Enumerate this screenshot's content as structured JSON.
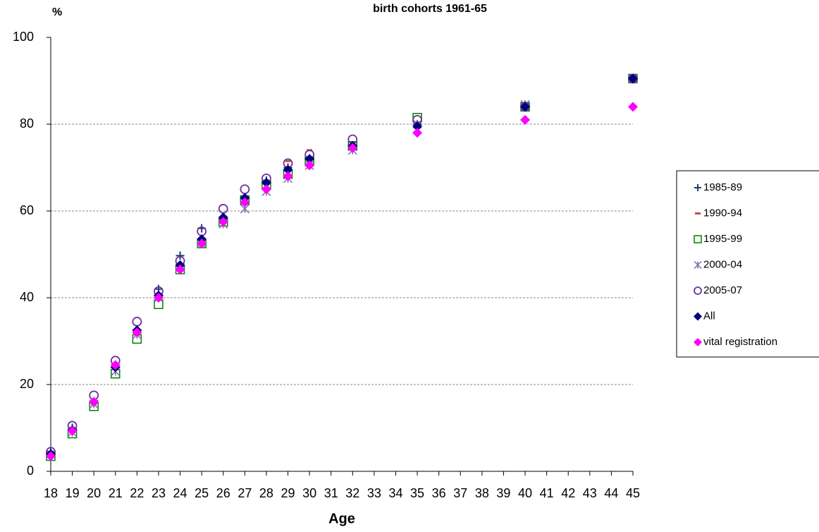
{
  "chart_data": {
    "type": "scatter",
    "title": "birth cohorts 1961-65",
    "y_label": "%",
    "x_label": "Age",
    "x": [
      18,
      19,
      20,
      21,
      22,
      23,
      24,
      25,
      26,
      27,
      28,
      29,
      30,
      32,
      35,
      40,
      45
    ],
    "xlim": [
      18,
      45
    ],
    "xticks": [
      18,
      19,
      20,
      21,
      22,
      23,
      24,
      25,
      26,
      27,
      28,
      29,
      30,
      31,
      32,
      33,
      34,
      35,
      36,
      37,
      38,
      39,
      40,
      41,
      42,
      43,
      44,
      45
    ],
    "ylim": [
      0,
      100
    ],
    "yticks": [
      0,
      20,
      40,
      60,
      80,
      100
    ],
    "grid": true,
    "legend": "right",
    "series": [
      {
        "name": "1985-89",
        "color": "#1f3b73",
        "marker": "plus",
        "values": [
          4.5,
          10,
          16,
          24.5,
          32.5,
          42,
          49.7,
          56,
          58,
          63,
          67,
          70,
          72,
          75,
          80,
          84.5,
          90.5
        ]
      },
      {
        "name": "1990-94",
        "color": "#c0504d",
        "marker": "dash",
        "values": [
          4,
          9.5,
          15.5,
          23.5,
          31.5,
          40.5,
          47,
          53.5,
          58,
          62.5,
          67,
          71.5,
          74,
          75,
          80,
          84,
          90.5
        ]
      },
      {
        "name": "1995-99",
        "color": "#008000",
        "marker": "square",
        "values": [
          3.5,
          8.7,
          15,
          22.5,
          30.5,
          38.5,
          46.5,
          52.5,
          57.5,
          62.5,
          66,
          68.5,
          71.5,
          75,
          81.5,
          84,
          90.5
        ]
      },
      {
        "name": "2000-04",
        "color": "#7f6fa8",
        "marker": "asterisk",
        "values": [
          4,
          9,
          15.5,
          23,
          31.5,
          40,
          47,
          52.5,
          57,
          60.5,
          64.5,
          67.5,
          70.5,
          74,
          80,
          84.5,
          90.5
        ]
      },
      {
        "name": "2005-07",
        "color": "#7030a0",
        "marker": "circle",
        "values": [
          4.5,
          10.5,
          17.5,
          25.5,
          34.5,
          41.5,
          48.5,
          55.3,
          60.5,
          65,
          67.5,
          71,
          73,
          76.5,
          81,
          84,
          90.5
        ]
      },
      {
        "name": "All",
        "color": "#00007f",
        "marker": "diamond",
        "values": [
          4,
          9.5,
          16,
          24,
          32.5,
          40.5,
          47.5,
          53.5,
          58.5,
          63,
          66.5,
          69.5,
          72,
          75,
          79.5,
          84,
          90.5
        ]
      },
      {
        "name": "vital registration",
        "color": "#ff00ff",
        "marker": "diamond",
        "values": [
          3.5,
          9.3,
          16,
          24.5,
          32,
          40,
          46.5,
          52.5,
          57.5,
          62,
          65,
          68,
          70.5,
          74.5,
          78,
          81,
          84
        ]
      }
    ]
  }
}
